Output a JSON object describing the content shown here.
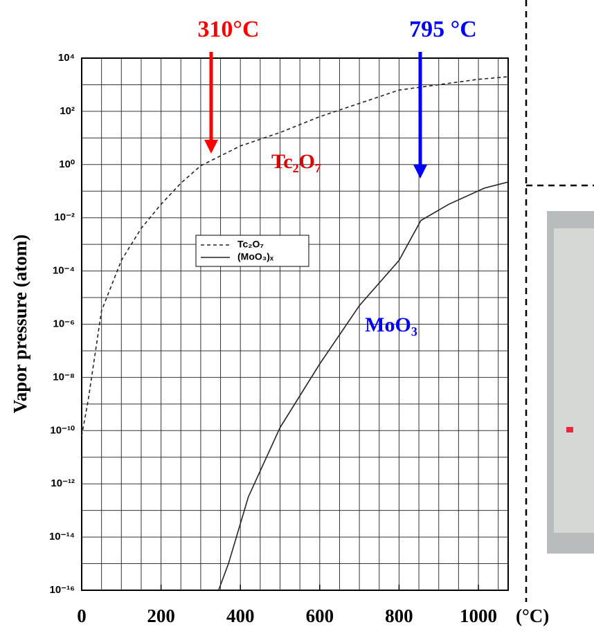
{
  "chart_data": {
    "type": "line",
    "y_label": "Vapor pressure (atom)",
    "x_unit": "(°C)",
    "log_y": true,
    "xlim": [
      0,
      1075
    ],
    "ylim": [
      1e-16,
      10000
    ],
    "xticks": [
      0,
      200,
      400,
      600,
      800,
      1000
    ],
    "xgrid": [
      0,
      50,
      100,
      150,
      200,
      250,
      300,
      350,
      400,
      450,
      500,
      550,
      600,
      650,
      700,
      750,
      800,
      850,
      900,
      950,
      1000,
      1050
    ],
    "yticks": [
      {
        "value": 10000,
        "label": "10⁴"
      },
      {
        "value": 100,
        "label": "10²"
      },
      {
        "value": 1,
        "label": "10⁰"
      },
      {
        "value": 0.01,
        "label": "10⁻²"
      },
      {
        "value": 0.0001,
        "label": "10⁻⁴"
      },
      {
        "value": 1e-06,
        "label": "10⁻⁶"
      },
      {
        "value": 1e-08,
        "label": "10⁻⁸"
      },
      {
        "value": 1e-10,
        "label": "10⁻¹⁰"
      },
      {
        "value": 1e-12,
        "label": "10⁻¹²"
      },
      {
        "value": 1e-14,
        "label": "10⁻¹⁴"
      },
      {
        "value": 1e-16,
        "label": "10⁻¹⁶"
      }
    ],
    "ygrid": [
      1000,
      10,
      0.1,
      0.001,
      1e-05,
      1e-07,
      1e-09,
      1e-11,
      1e-13,
      1e-15
    ],
    "grid": true,
    "series": [
      {
        "name": "Tc₂O₇",
        "color": "#222222",
        "dash": true,
        "x": [
          0,
          17,
          50,
          100,
          150,
          200,
          250,
          300,
          400,
          500,
          600,
          800,
          1000,
          1075
        ],
        "values": [
          6.3e-11,
          1.6e-09,
          3.2e-06,
          0.00025,
          0.004,
          0.032,
          0.2,
          0.9,
          5,
          16,
          63,
          630,
          1600,
          2000
        ]
      },
      {
        "name": "(MoO₃)ₓ",
        "color": "#222222",
        "dash": false,
        "x": [
          345,
          370,
          420,
          500,
          600,
          700,
          800,
          855,
          925,
          1015,
          1075
        ],
        "values": [
          1e-16,
          1e-15,
          3.2e-13,
          1.3e-10,
          3.2e-08,
          5e-06,
          0.00025,
          0.0079,
          0.032,
          0.13,
          0.22
        ]
      }
    ],
    "annotations": [
      {
        "text": "310°C",
        "color": "#ff0000"
      },
      {
        "text": "795 °C",
        "color": "#0000ff"
      },
      {
        "text": "Tc₂O₇",
        "color": "#e00000"
      },
      {
        "text": "MoO₃",
        "color": "#0000ff"
      }
    ]
  }
}
